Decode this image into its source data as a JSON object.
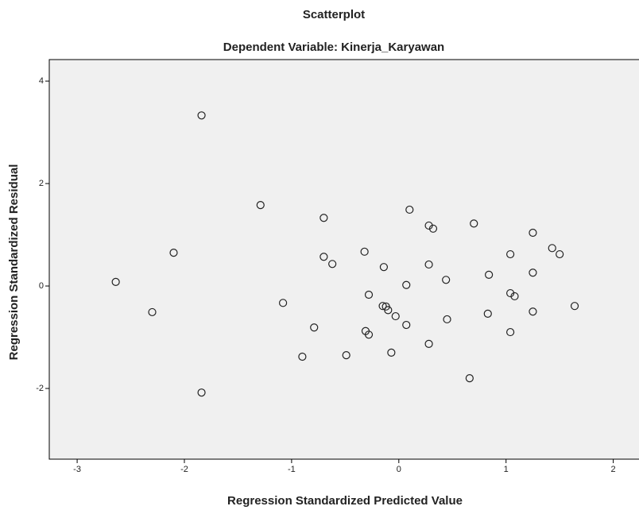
{
  "chart_data": {
    "type": "scatter",
    "title": "Scatterplot",
    "subtitle": "Dependent Variable: Kinerja_Karyawan",
    "x_label": "Regression Standardized Predicted Value",
    "y_label": "Regression Standardized Residual",
    "color": "#222222",
    "background": "#f0f0f0",
    "xlim": [
      -3.26,
      2.24
    ],
    "xticks": [
      -3,
      -2,
      -1,
      0,
      1,
      2
    ],
    "ylim": [
      -3.38,
      4.42
    ],
    "yticks": [
      -2,
      0,
      2,
      4
    ],
    "x": [
      -1.84,
      -1.29,
      -2.1,
      -2.64,
      -2.3,
      -1.84,
      -0.7,
      -0.7,
      -0.62,
      -1.08,
      -0.79,
      -0.9,
      -0.49,
      -0.32,
      -0.28,
      -0.14,
      -0.15,
      -0.12,
      -0.1,
      -0.03,
      -0.31,
      -0.28,
      -0.07,
      0.07,
      0.07,
      0.1,
      0.28,
      0.32,
      0.28,
      0.28,
      0.44,
      0.45,
      0.7,
      0.66,
      0.84,
      0.83,
      1.04,
      1.04,
      1.08,
      1.04,
      1.25,
      1.25,
      1.25,
      1.43,
      1.5,
      1.64
    ],
    "y": [
      3.33,
      1.58,
      0.65,
      0.08,
      -0.51,
      -2.08,
      1.33,
      0.57,
      0.43,
      -0.33,
      -0.81,
      -1.38,
      -1.35,
      0.67,
      -0.17,
      0.37,
      -0.39,
      -0.4,
      -0.47,
      -0.59,
      -0.88,
      -0.95,
      -1.3,
      -0.76,
      0.02,
      1.49,
      1.18,
      1.12,
      0.42,
      -1.13,
      0.12,
      -0.65,
      1.22,
      -1.8,
      0.22,
      -0.54,
      0.62,
      -0.14,
      -0.2,
      -0.9,
      1.04,
      0.26,
      -0.5,
      0.74,
      0.62,
      -0.39
    ]
  }
}
